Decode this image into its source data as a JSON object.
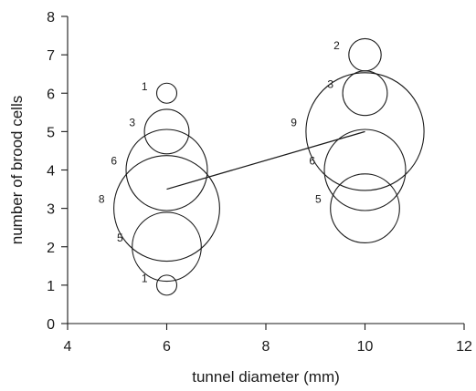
{
  "chart_data": {
    "type": "scatter",
    "title": "",
    "xlabel": "tunnel diameter (mm)",
    "ylabel": "number of brood cells",
    "xlim": [
      4,
      12
    ],
    "ylim": [
      0,
      8
    ],
    "xticks": [
      4,
      6,
      8,
      10,
      12
    ],
    "yticks": [
      0,
      1,
      2,
      3,
      4,
      5,
      6,
      7,
      8
    ],
    "grid": false,
    "legend": "none",
    "points": [
      {
        "x": 6,
        "y": 1,
        "count": 1,
        "label": "1"
      },
      {
        "x": 6,
        "y": 2,
        "count": 5,
        "label": "5"
      },
      {
        "x": 6,
        "y": 3,
        "count": 8,
        "label": "8"
      },
      {
        "x": 6,
        "y": 4,
        "count": 6,
        "label": "6"
      },
      {
        "x": 6,
        "y": 5,
        "count": 3,
        "label": "3"
      },
      {
        "x": 6,
        "y": 6,
        "count": 1,
        "label": "1"
      },
      {
        "x": 10,
        "y": 3,
        "count": 5,
        "label": "5"
      },
      {
        "x": 10,
        "y": 4,
        "count": 6,
        "label": "6"
      },
      {
        "x": 10,
        "y": 5,
        "count": 9,
        "label": "9"
      },
      {
        "x": 10,
        "y": 6,
        "count": 3,
        "label": "3"
      },
      {
        "x": 10,
        "y": 7,
        "count": 2,
        "label": "2"
      }
    ],
    "line": [
      {
        "x": 6,
        "y": 3.5
      },
      {
        "x": 10,
        "y": 5
      }
    ]
  }
}
